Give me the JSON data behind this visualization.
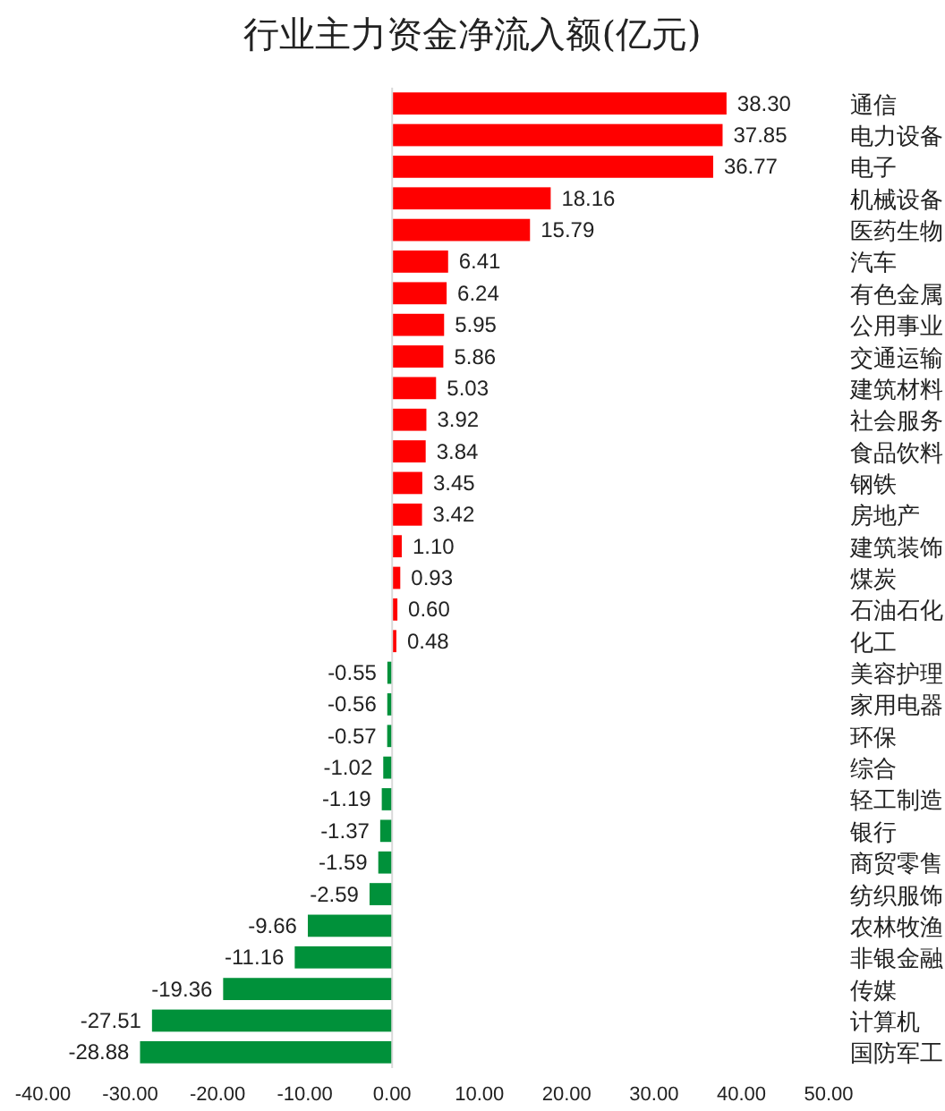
{
  "chart_data": {
    "type": "bar",
    "orientation": "horizontal",
    "title": "行业主力资金净流入额(亿元)",
    "categories": [
      "通信",
      "电力设备",
      "电子",
      "机械设备",
      "医药生物",
      "汽车",
      "有色金属",
      "公用事业",
      "交通运输",
      "建筑材料",
      "社会服务",
      "食品饮料",
      "钢铁",
      "房地产",
      "建筑装饰",
      "煤炭",
      "石油石化",
      "化工",
      "美容护理",
      "家用电器",
      "环保",
      "综合",
      "轻工制造",
      "银行",
      "商贸零售",
      "纺织服饰",
      "农林牧渔",
      "非银金融",
      "传媒",
      "计算机",
      "国防军工"
    ],
    "values": [
      38.3,
      37.85,
      36.77,
      18.16,
      15.79,
      6.41,
      6.24,
      5.95,
      5.86,
      5.03,
      3.92,
      3.84,
      3.45,
      3.42,
      1.1,
      0.93,
      0.6,
      0.48,
      -0.55,
      -0.56,
      -0.57,
      -1.02,
      -1.19,
      -1.37,
      -1.59,
      -2.59,
      -9.66,
      -11.16,
      -19.36,
      -27.51,
      -28.88
    ],
    "value_labels": [
      "38.30",
      "37.85",
      "36.77",
      "18.16",
      "15.79",
      "6.41",
      "6.24",
      "5.95",
      "5.86",
      "5.03",
      "3.92",
      "3.84",
      "3.45",
      "3.42",
      "1.10",
      "0.93",
      "0.60",
      "0.48",
      "-0.55",
      "-0.56",
      "-0.57",
      "-1.02",
      "-1.19",
      "-1.37",
      "-1.59",
      "-2.59",
      "-9.66",
      "-11.16",
      "-19.36",
      "-27.51",
      "-28.88"
    ],
    "colors": [
      "#ff0000",
      "#ff0000",
      "#ff0000",
      "#ff0000",
      "#ff0000",
      "#ff0000",
      "#ff0000",
      "#ff0000",
      "#ff0000",
      "#ff0000",
      "#ff0000",
      "#ff0000",
      "#ff0000",
      "#ff0000",
      "#ff0000",
      "#ff0000",
      "#ff0000",
      "#ff0000",
      "#00913a",
      "#00913a",
      "#00913a",
      "#00913a",
      "#00913a",
      "#00913a",
      "#00913a",
      "#00913a",
      "#00913a",
      "#00913a",
      "#00913a",
      "#00913a",
      "#00913a"
    ],
    "xlim": [
      -40,
      50
    ],
    "xticks": [
      {
        "value": -40,
        "label": "-40.00"
      },
      {
        "value": -30,
        "label": "-30.00"
      },
      {
        "value": -20,
        "label": "-20.00"
      },
      {
        "value": -10,
        "label": "-10.00"
      },
      {
        "value": 0,
        "label": "0.00"
      },
      {
        "value": 10,
        "label": "10.00"
      },
      {
        "value": 20,
        "label": "20.00"
      },
      {
        "value": 30,
        "label": "30.00"
      },
      {
        "value": 40,
        "label": "40.00"
      },
      {
        "value": 50,
        "label": "50.00"
      }
    ]
  }
}
